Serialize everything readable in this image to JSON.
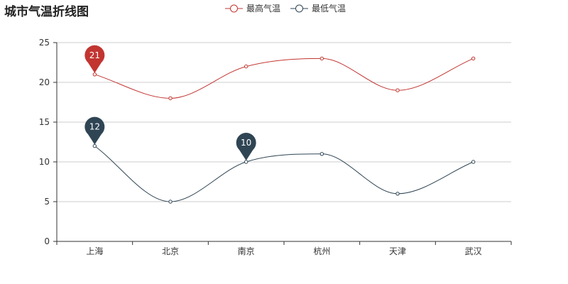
{
  "chart_data": {
    "type": "line",
    "title": "城市气温折线图",
    "categories": [
      "上海",
      "北京",
      "南京",
      "杭州",
      "天津",
      "武汉"
    ],
    "series": [
      {
        "name": "最高气温",
        "values": [
          21,
          18,
          22,
          23,
          19,
          23
        ],
        "color": "#c23531",
        "markers": [
          {
            "category": "上海",
            "value": 21,
            "label": "21"
          }
        ]
      },
      {
        "name": "最低气温",
        "values": [
          12,
          5,
          10,
          11,
          6,
          10
        ],
        "color": "#2f4554",
        "markers": [
          {
            "category": "上海",
            "value": 12,
            "label": "12"
          },
          {
            "category": "南京",
            "value": 10,
            "label": "10"
          }
        ]
      }
    ],
    "ylim": [
      0,
      25
    ],
    "yticks": [
      0,
      5,
      10,
      15,
      20,
      25
    ],
    "xlabel": "",
    "ylabel": "",
    "smooth": true,
    "grid": "horizontal",
    "legend_position": "top-center"
  }
}
